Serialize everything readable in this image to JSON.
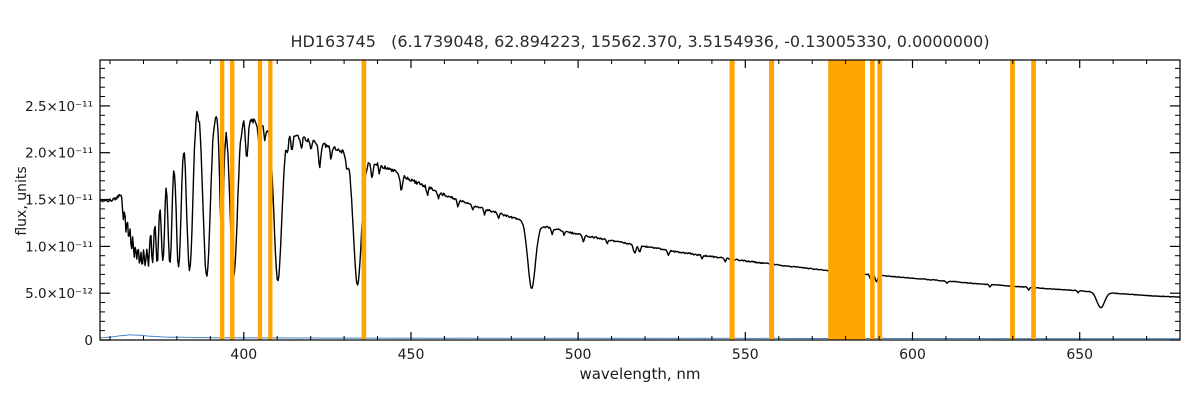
{
  "page": {
    "background": "#ffffff"
  },
  "chart_data": {
    "type": "line",
    "title": "HD163745   (6.1739048, 62.894223, 15562.370, 3.5154936, -0.13005330, 0.0000000)",
    "star_id": "HD163745",
    "title_params": [
      6.1739048,
      62.894223,
      15562.37,
      3.5154936,
      -0.1300533,
      0.0
    ],
    "xlabel": "wavelength, nm",
    "ylabel": "flux, units",
    "xlim": [
      357,
      680
    ],
    "ylim": [
      0,
      2.99e-11
    ],
    "xticks": [
      400,
      450,
      500,
      550,
      600,
      650
    ],
    "xtick_minor_step": 10,
    "yticks": [
      0,
      5e-12,
      1e-11,
      1.5e-11,
      2e-11,
      2.5e-11
    ],
    "ytick_labels": [
      "0",
      "5.0×10⁻¹²",
      "1.0×10⁻¹¹",
      "1.5×10⁻¹¹",
      "2.0×10⁻¹¹",
      "2.5×10⁻¹¹"
    ],
    "ytick_minor_step": 1e-12,
    "grid": false,
    "legend": "none",
    "colors": {
      "spectrum": "#000000",
      "error": "#4a86c8",
      "mask": "#ffa500",
      "axis": "#000000"
    },
    "series": [
      {
        "name": "stellar flux spectrum",
        "color": "#000000",
        "role": "spectrum"
      },
      {
        "name": "error spectrum",
        "color": "#4a86c8",
        "role": "error"
      }
    ],
    "spectrum": {
      "continuum_points": [
        [
          357,
          1.48e-11
        ],
        [
          361,
          1.5e-11
        ],
        [
          364,
          1.56e-11
        ],
        [
          367,
          1.78e-11
        ],
        [
          370,
          2.02e-11
        ],
        [
          373,
          2.22e-11
        ],
        [
          376,
          2.38e-11
        ],
        [
          379,
          2.48e-11
        ],
        [
          382,
          2.54e-11
        ],
        [
          385,
          2.56e-11
        ],
        [
          388,
          2.53e-11
        ],
        [
          392,
          2.47e-11
        ],
        [
          396,
          2.43e-11
        ],
        [
          400,
          2.37e-11
        ],
        [
          405,
          2.31e-11
        ],
        [
          410,
          2.25e-11
        ],
        [
          415,
          2.19e-11
        ],
        [
          420,
          2.13e-11
        ],
        [
          425,
          2.07e-11
        ],
        [
          430,
          2.01e-11
        ],
        [
          435,
          1.95e-11
        ],
        [
          440,
          1.88e-11
        ],
        [
          445,
          1.8e-11
        ],
        [
          450,
          1.71e-11
        ],
        [
          460,
          1.55e-11
        ],
        [
          470,
          1.42e-11
        ],
        [
          480,
          1.31e-11
        ],
        [
          490,
          1.21e-11
        ],
        [
          500,
          1.13e-11
        ],
        [
          510,
          1.06e-11
        ],
        [
          520,
          1e-11
        ],
        [
          530,
          9.4e-12
        ],
        [
          540,
          8.9e-12
        ],
        [
          550,
          8.45e-12
        ],
        [
          560,
          8e-12
        ],
        [
          570,
          7.6e-12
        ],
        [
          580,
          7.25e-12
        ],
        [
          590,
          6.9e-12
        ],
        [
          600,
          6.6e-12
        ],
        [
          610,
          6.3e-12
        ],
        [
          620,
          6e-12
        ],
        [
          630,
          5.75e-12
        ],
        [
          640,
          5.5e-12
        ],
        [
          650,
          5.25e-12
        ],
        [
          660,
          5e-12
        ],
        [
          672,
          4.7e-12
        ],
        [
          680,
          4.6e-12
        ]
      ],
      "absorption_lines": [
        {
          "center": 364.0,
          "depth": 0.18,
          "width": 0.35
        },
        {
          "center": 364.8,
          "depth": 0.28,
          "width": 0.38
        },
        {
          "center": 365.6,
          "depth": 0.35,
          "width": 0.4
        },
        {
          "center": 366.4,
          "depth": 0.42,
          "width": 0.42
        },
        {
          "center": 367.2,
          "depth": 0.47,
          "width": 0.45
        },
        {
          "center": 368.0,
          "depth": 0.5,
          "width": 0.45
        },
        {
          "center": 368.8,
          "depth": 0.52,
          "width": 0.45
        },
        {
          "center": 369.6,
          "depth": 0.54,
          "width": 0.5
        },
        {
          "center": 370.5,
          "depth": 0.56,
          "width": 0.55
        },
        {
          "center": 371.5,
          "depth": 0.58,
          "width": 0.6
        },
        {
          "center": 372.7,
          "depth": 0.6,
          "width": 0.65
        },
        {
          "center": 374.1,
          "depth": 0.62,
          "width": 0.75
        },
        {
          "center": 375.8,
          "depth": 0.64,
          "width": 0.85
        },
        {
          "center": 377.9,
          "depth": 0.66,
          "width": 0.95
        },
        {
          "center": 380.5,
          "depth": 0.69,
          "width": 1.1
        },
        {
          "center": 383.8,
          "depth": 0.71,
          "width": 1.3
        },
        {
          "center": 388.9,
          "depth": 0.73,
          "width": 1.5
        },
        {
          "center": 393.4,
          "depth": 0.55,
          "width": 0.8
        },
        {
          "center": 397.0,
          "depth": 0.72,
          "width": 1.5
        },
        {
          "center": 410.2,
          "depth": 0.72,
          "width": 1.6
        },
        {
          "center": 434.0,
          "depth": 0.7,
          "width": 1.7
        },
        {
          "center": 486.1,
          "depth": 0.56,
          "width": 1.6
        },
        {
          "center": 656.3,
          "depth": 0.32,
          "width": 1.6
        },
        {
          "center": 400.9,
          "depth": 0.18,
          "width": 0.5
        },
        {
          "center": 404.6,
          "depth": 0.1,
          "width": 0.4
        },
        {
          "center": 406.3,
          "depth": 0.08,
          "width": 0.35
        },
        {
          "center": 413.1,
          "depth": 0.07,
          "width": 0.35
        },
        {
          "center": 414.4,
          "depth": 0.08,
          "width": 0.4
        },
        {
          "center": 417.2,
          "depth": 0.06,
          "width": 0.35
        },
        {
          "center": 420.0,
          "depth": 0.05,
          "width": 0.3
        },
        {
          "center": 422.7,
          "depth": 0.12,
          "width": 0.5
        },
        {
          "center": 426.1,
          "depth": 0.06,
          "width": 0.35
        },
        {
          "center": 430.8,
          "depth": 0.08,
          "width": 0.4
        },
        {
          "center": 438.4,
          "depth": 0.09,
          "width": 0.45
        },
        {
          "center": 440.5,
          "depth": 0.05,
          "width": 0.3
        },
        {
          "center": 447.1,
          "depth": 0.1,
          "width": 0.45
        },
        {
          "center": 454.9,
          "depth": 0.05,
          "width": 0.35
        },
        {
          "center": 458.2,
          "depth": 0.04,
          "width": 0.3
        },
        {
          "center": 464.0,
          "depth": 0.05,
          "width": 0.35
        },
        {
          "center": 468.5,
          "depth": 0.04,
          "width": 0.3
        },
        {
          "center": 472.0,
          "depth": 0.04,
          "width": 0.3
        },
        {
          "center": 476.2,
          "depth": 0.04,
          "width": 0.3
        },
        {
          "center": 492.2,
          "depth": 0.05,
          "width": 0.35
        },
        {
          "center": 495.8,
          "depth": 0.04,
          "width": 0.3
        },
        {
          "center": 501.6,
          "depth": 0.06,
          "width": 0.4
        },
        {
          "center": 508.7,
          "depth": 0.04,
          "width": 0.3
        },
        {
          "center": 516.9,
          "depth": 0.09,
          "width": 0.55
        },
        {
          "center": 518.4,
          "depth": 0.07,
          "width": 0.4
        },
        {
          "center": 527.0,
          "depth": 0.05,
          "width": 0.4
        },
        {
          "center": 537.1,
          "depth": 0.04,
          "width": 0.35
        },
        {
          "center": 544.0,
          "depth": 0.04,
          "width": 0.3
        },
        {
          "center": 587.6,
          "depth": 0.08,
          "width": 0.45
        },
        {
          "center": 589.2,
          "depth": 0.1,
          "width": 0.5
        },
        {
          "center": 610.3,
          "depth": 0.04,
          "width": 0.35
        },
        {
          "center": 623.1,
          "depth": 0.04,
          "width": 0.35
        },
        {
          "center": 634.7,
          "depth": 0.05,
          "width": 0.35
        },
        {
          "center": 649.5,
          "depth": 0.04,
          "width": 0.3
        }
      ]
    },
    "error_points": [
      [
        357,
        2.5e-13
      ],
      [
        360,
        3e-13
      ],
      [
        363,
        4.5e-13
      ],
      [
        366,
        5.5e-13
      ],
      [
        369,
        5e-13
      ],
      [
        372,
        4e-13
      ],
      [
        376,
        3.2e-13
      ],
      [
        382,
        2.8e-13
      ],
      [
        390,
        2.5e-13
      ],
      [
        400,
        2.3e-13
      ],
      [
        420,
        2.1e-13
      ],
      [
        450,
        2e-13
      ],
      [
        500,
        1.8e-13
      ],
      [
        550,
        1.7e-13
      ],
      [
        600,
        1.6e-13
      ],
      [
        650,
        1.5e-13
      ],
      [
        680,
        1.5e-13
      ]
    ],
    "mask_bands_nm": [
      [
        392.9,
        394.2
      ],
      [
        395.9,
        397.2
      ],
      [
        404.2,
        405.5
      ],
      [
        407.3,
        408.6
      ],
      [
        435.2,
        436.6
      ],
      [
        545.3,
        546.8
      ],
      [
        557.1,
        558.6
      ],
      [
        574.8,
        585.8
      ],
      [
        587.3,
        588.7
      ],
      [
        589.5,
        590.9
      ],
      [
        629.2,
        630.6
      ],
      [
        635.5,
        636.9
      ]
    ]
  }
}
